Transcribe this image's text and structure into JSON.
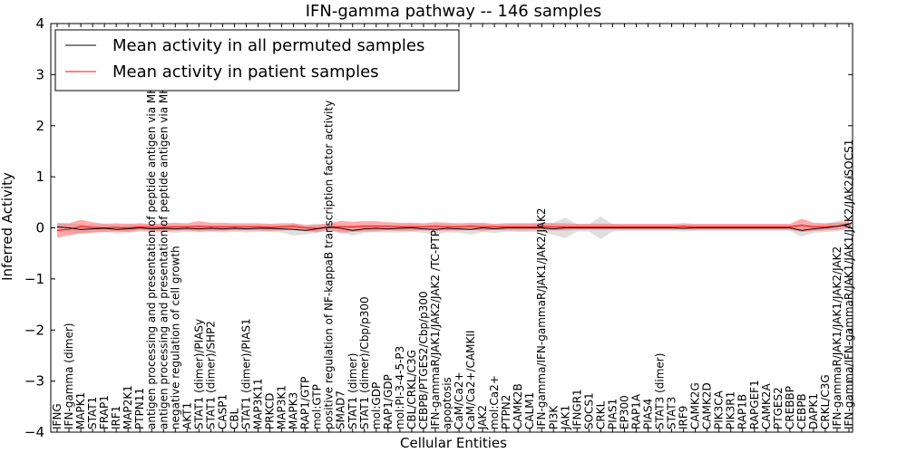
{
  "chart_data": {
    "type": "line",
    "title": "IFN-gamma pathway -- 146 samples",
    "xlabel": "Cellular Entities",
    "ylabel": "Inferred Activity",
    "ylim": [
      -4,
      4
    ],
    "yticks": [
      -4,
      -3,
      -2,
      -1,
      0,
      1,
      2,
      3,
      4
    ],
    "legend": {
      "location": "top-left"
    },
    "categories": [
      "IFNG",
      "IFN-gamma (dimer)",
      "MAPK1",
      "STAT1",
      "FRAP1",
      "IRF1",
      "MAP2K1",
      "PTPN11",
      "antigen processing and presentation of peptide antigen via MHC class I",
      "antigen processing and presentation of peptide antigen via MHC class II",
      "negative regulation of cell growth",
      "AKT1",
      "STAT1 (dimer)/PIASy",
      "STAT1 (dimer)/SHP2",
      "CASP1",
      "CBL",
      "STAT1 (dimer)/PIAS1",
      "MAP3K11",
      "PRKCD",
      "MAP3K1",
      "MAPK3",
      "RAP1/GTP",
      "mol:GTP",
      "positive regulation of NF-kappaB transcription factor activity",
      "SMAD7",
      "STAT1 (dimer)",
      "STAT1 (dimer)/Cbp/p300",
      "mol:GDP",
      "RAP1/GDP",
      "mol:PI-3-4-5-P3",
      "CBL/CRKL/C3G",
      "CEBPB/PTGES2/Cbp/p300",
      "IFN-gammaR/JAK1/JAK2/JAK2 /TC-PTP",
      "apoptosis",
      "CaM/Ca2+",
      "CaM/Ca2+/CAMKII",
      "JAK2",
      "mol:Ca2+",
      "PTPN2",
      "CAMK2B",
      "CALM1",
      "IFN-gamma/IFN-gammaR/JAK1/JAK2/JAK2",
      "PI3K",
      "JAK1",
      "IFNGR1",
      "SOCS1",
      "CRKL",
      "PIAS1",
      "EP300",
      "RAP1A",
      "PIAS4",
      "STAT3 (dimer)",
      "STAT3",
      "IRF9",
      "CAMK2G",
      "CAMK2D",
      "PIK3CA",
      "PIK3R1",
      "RAP1B",
      "RAPGEF1",
      "CAMK2A",
      "PTGES2",
      "CREBBP",
      "CEBPB",
      "DAPK1",
      "CRKL/C3G",
      "IFN-gammaR/JAK1/JAK1/JAK2/JAK2",
      "IFN-gamma/IFN-gammaR/JAK1/JAK1/JAK2/JAK2/SOCS1"
    ],
    "series": [
      {
        "name": "Mean activity in all permuted samples",
        "color": "#000000",
        "band_color": "#bfbfbf",
        "values": [
          0.02,
          0.0,
          -0.03,
          -0.02,
          -0.01,
          -0.03,
          -0.02,
          0.0,
          -0.02,
          -0.01,
          -0.02,
          -0.01,
          -0.02,
          -0.01,
          -0.02,
          -0.01,
          -0.02,
          -0.01,
          -0.01,
          -0.02,
          -0.03,
          -0.05,
          -0.02,
          0.02,
          -0.01,
          -0.05,
          -0.02,
          -0.01,
          -0.02,
          -0.01,
          0.0,
          -0.02,
          -0.03,
          -0.01,
          -0.02,
          -0.03,
          0.0,
          -0.02,
          0.0,
          0.0,
          0.0,
          0.0,
          -0.02,
          0.0,
          0.0,
          0.0,
          0.0,
          0.0,
          0.0,
          0.0,
          0.0,
          0.0,
          0.0,
          -0.01,
          0.0,
          0.0,
          0.0,
          0.0,
          0.0,
          0.0,
          0.0,
          0.0,
          0.0,
          -0.05,
          -0.02,
          0.0,
          0.03,
          0.08
        ],
        "band": [
          0.08,
          0.08,
          0.1,
          0.08,
          0.07,
          0.08,
          0.08,
          0.07,
          0.08,
          0.07,
          0.08,
          0.07,
          0.07,
          0.07,
          0.07,
          0.07,
          0.07,
          0.07,
          0.07,
          0.07,
          0.12,
          0.08,
          0.07,
          0.07,
          0.07,
          0.1,
          0.08,
          0.07,
          0.07,
          0.08,
          0.07,
          0.08,
          0.1,
          0.08,
          0.08,
          0.1,
          0.08,
          0.08,
          0.07,
          0.08,
          0.08,
          0.08,
          0.12,
          0.2,
          0.07,
          0.07,
          0.22,
          0.07,
          0.06,
          0.06,
          0.06,
          0.06,
          0.06,
          0.06,
          0.06,
          0.06,
          0.06,
          0.06,
          0.06,
          0.06,
          0.06,
          0.06,
          0.06,
          0.12,
          0.08,
          0.08,
          0.1,
          0.1
        ]
      },
      {
        "name": "Mean activity in patient samples",
        "color": "#ff0000",
        "band_color": "#ff6666",
        "values": [
          -0.05,
          -0.03,
          0.03,
          0.01,
          0.0,
          0.01,
          0.0,
          0.02,
          0.01,
          0.01,
          0.02,
          0.02,
          0.03,
          0.02,
          0.02,
          0.02,
          0.02,
          0.02,
          0.01,
          0.02,
          0.03,
          0.0,
          -0.01,
          0.02,
          0.02,
          0.02,
          0.03,
          0.03,
          0.03,
          0.02,
          0.02,
          0.02,
          0.03,
          0.02,
          0.02,
          0.03,
          0.02,
          0.02,
          0.02,
          0.02,
          0.02,
          0.03,
          0.02,
          0.02,
          0.02,
          0.02,
          0.02,
          0.02,
          0.02,
          0.02,
          0.02,
          0.02,
          0.02,
          0.03,
          0.02,
          0.02,
          0.02,
          0.02,
          0.02,
          0.02,
          0.02,
          0.02,
          0.02,
          0.05,
          0.02,
          0.02,
          0.03,
          0.06
        ],
        "band": [
          0.14,
          0.12,
          0.13,
          0.1,
          0.08,
          0.08,
          0.08,
          0.07,
          0.07,
          0.08,
          0.08,
          0.07,
          0.1,
          0.08,
          0.08,
          0.07,
          0.07,
          0.07,
          0.07,
          0.07,
          0.06,
          0.06,
          0.08,
          0.06,
          0.12,
          0.1,
          0.1,
          0.1,
          0.08,
          0.08,
          0.08,
          0.07,
          0.08,
          0.08,
          0.07,
          0.07,
          0.08,
          0.06,
          0.07,
          0.07,
          0.07,
          0.07,
          0.07,
          0.07,
          0.06,
          0.06,
          0.06,
          0.06,
          0.06,
          0.06,
          0.06,
          0.06,
          0.06,
          0.06,
          0.06,
          0.06,
          0.06,
          0.06,
          0.06,
          0.06,
          0.06,
          0.06,
          0.06,
          0.13,
          0.08,
          0.07,
          0.07,
          0.06
        ]
      }
    ]
  }
}
